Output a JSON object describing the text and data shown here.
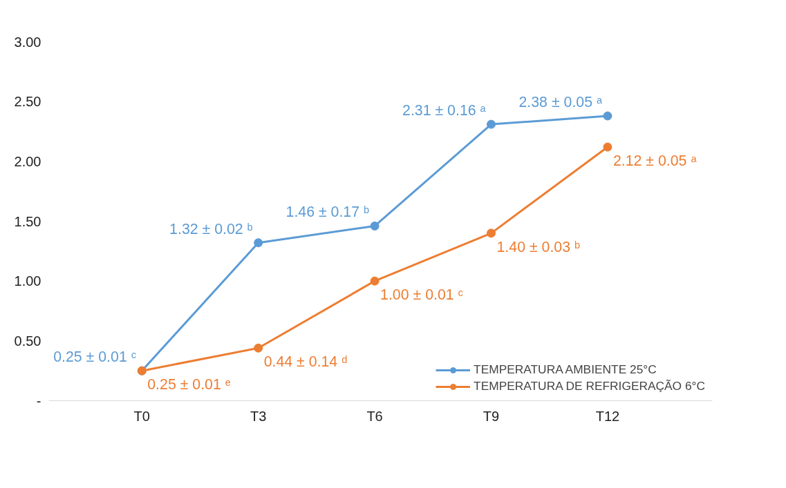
{
  "chart_data": {
    "type": "line",
    "categories": [
      "T0",
      "T3",
      "T6",
      "T9",
      "T12"
    ],
    "series": [
      {
        "name": "TEMPERATURA AMBIENTE 25°C",
        "color": "#5b9bd5",
        "values": [
          0.25,
          1.32,
          1.46,
          2.31,
          2.38
        ],
        "value_labels": [
          "0.25 ± 0.01 ᶜ",
          "1.32 ± 0.02 ᵇ",
          "1.46 ± 0.17 ᵇ",
          "2.31 ± 0.16 ᵃ",
          "2.38 ± 0.05 ᵃ"
        ]
      },
      {
        "name": "TEMPERATURA DE REFRIGERAÇÃO 6°C",
        "color": "#ed7d31",
        "values": [
          0.25,
          0.44,
          1.0,
          1.4,
          2.12
        ],
        "value_labels": [
          "0.25 ± 0.01 ᵉ",
          "0.44 ± 0.14 ᵈ",
          "1.00  ± 0.01 ᶜ",
          "1.40 ± 0.03 ᵇ",
          "2.12 ± 0.05 ᵃ"
        ]
      }
    ],
    "ylim": [
      0,
      3.0
    ],
    "yticks": [
      {
        "value": 0,
        "label": "-"
      },
      {
        "value": 0.5,
        "label": "0.50"
      },
      {
        "value": 1,
        "label": "1.00"
      },
      {
        "value": 1.5,
        "label": "1.50"
      },
      {
        "value": 2,
        "label": "2.00"
      },
      {
        "value": 2.5,
        "label": "2.50"
      },
      {
        "value": 3,
        "label": "3.00"
      }
    ],
    "grid": false,
    "legend": "bottom right",
    "marker": "circle",
    "line_style": "solid"
  }
}
